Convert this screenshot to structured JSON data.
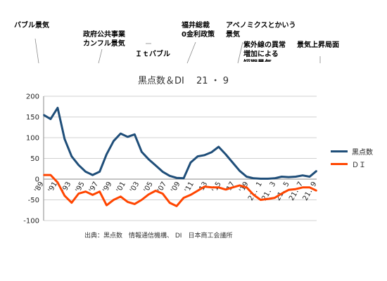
{
  "chart_data": {
    "type": "line",
    "title": "黒点数＆DI　 21 ・ 9",
    "x_labels": [
      "'89",
      "'91",
      "'93",
      "'95",
      "'97",
      "'99",
      "'01",
      "'03",
      "'05",
      "'07",
      "'09",
      "'11",
      "'13",
      "'15",
      "'17",
      "'19",
      "21．1",
      "21．3",
      "21．5",
      "21．7",
      "21．9"
    ],
    "ylim": [
      -100,
      200
    ],
    "yticks": [
      200,
      150,
      100,
      50,
      0,
      -50,
      -100
    ],
    "grid": true,
    "legend_position": "right",
    "series": [
      {
        "name": "黒点数",
        "color": "#1f4e79",
        "values": [
          155,
          145,
          172,
          97,
          55,
          34,
          18,
          10,
          18,
          60,
          92,
          110,
          102,
          108,
          66,
          48,
          33,
          18,
          8,
          3,
          2,
          40,
          55,
          58,
          65,
          78,
          60,
          40,
          20,
          6,
          2,
          1,
          1,
          2,
          6,
          5,
          6,
          9,
          6,
          20
        ]
      },
      {
        "name": "ＤＩ",
        "color": "#ff4500",
        "values": [
          10,
          10,
          -8,
          -40,
          -57,
          -35,
          -30,
          -38,
          -30,
          -63,
          -50,
          -42,
          -55,
          -60,
          -50,
          -37,
          -28,
          -35,
          -57,
          -65,
          -45,
          -38,
          -28,
          -18,
          -20,
          -20,
          -25,
          -20,
          -15,
          -20,
          -38,
          -50,
          -48,
          -45,
          -35,
          -26,
          -24,
          -20,
          -20,
          -28
        ]
      }
    ]
  },
  "annotations": [
    {
      "text": "バブル景気",
      "color": "#e8342a"
    },
    {
      "text": "政府公共事業\nカンフル景気",
      "color": "#1a7a1a"
    },
    {
      "text": "Ｉｔバブル",
      "color": "#e8342a"
    },
    {
      "text": "福井総裁\n0金利政策",
      "color": "#1a7a1a"
    },
    {
      "text": "アベノミクスとかいう\n景気",
      "color": "#e8342a"
    },
    {
      "text": "紫外線の異常\n増加による\n短期景気",
      "color": "#1f3fd6"
    },
    {
      "text": "景気上昇局面",
      "color": "#e8342a"
    }
  ],
  "source": "出典：黒点数　情報通信機構、 DI　日本商工会議所"
}
